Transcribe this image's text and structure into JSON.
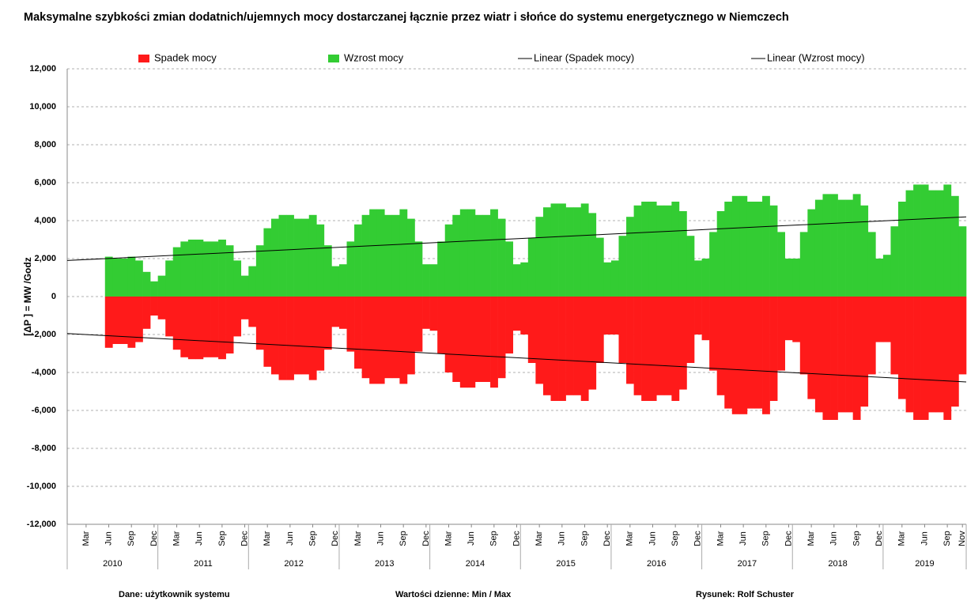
{
  "chart_data": {
    "type": "bar",
    "title": "Maksymalne szybkości zmian dodatnich/ujemnych mocy dostarczanej łącznie przez wiatr i słońce do systemu energetycznego w Niemczech",
    "y_label": "[ΔP ]  = MW /Godz",
    "footer": [
      "Dane:  użytkownik systemu",
      "Wartości dzienne:  Min  / Max",
      "Rysunek: Rolf Schuster"
    ],
    "x": [
      "2010-06",
      "2010-07",
      "2010-08",
      "2010-09",
      "2010-10",
      "2010-11",
      "2010-12",
      "2011-01",
      "2011-02",
      "2011-03",
      "2011-04",
      "2011-05",
      "2011-06",
      "2011-07",
      "2011-08",
      "2011-09",
      "2011-10",
      "2011-11",
      "2011-12",
      "2012-01",
      "2012-02",
      "2012-03",
      "2012-04",
      "2012-05",
      "2012-06",
      "2012-07",
      "2012-08",
      "2012-09",
      "2012-10",
      "2012-11",
      "2012-12",
      "2013-01",
      "2013-02",
      "2013-03",
      "2013-04",
      "2013-05",
      "2013-06",
      "2013-07",
      "2013-08",
      "2013-09",
      "2013-10",
      "2013-11",
      "2013-12",
      "2014-01",
      "2014-02",
      "2014-03",
      "2014-04",
      "2014-05",
      "2014-06",
      "2014-07",
      "2014-08",
      "2014-09",
      "2014-10",
      "2014-11",
      "2014-12",
      "2015-01",
      "2015-02",
      "2015-03",
      "2015-04",
      "2015-05",
      "2015-06",
      "2015-07",
      "2015-08",
      "2015-09",
      "2015-10",
      "2015-11",
      "2015-12",
      "2016-01",
      "2016-02",
      "2016-03",
      "2016-04",
      "2016-05",
      "2016-06",
      "2016-07",
      "2016-08",
      "2016-09",
      "2016-10",
      "2016-11",
      "2016-12",
      "2017-01",
      "2017-02",
      "2017-03",
      "2017-04",
      "2017-05",
      "2017-06",
      "2017-07",
      "2017-08",
      "2017-09",
      "2017-10",
      "2017-11",
      "2017-12",
      "2018-01",
      "2018-02",
      "2018-03",
      "2018-04",
      "2018-05",
      "2018-06",
      "2018-07",
      "2018-08",
      "2018-09",
      "2018-10",
      "2018-11",
      "2018-12",
      "2019-01",
      "2019-02",
      "2019-03",
      "2019-04",
      "2019-05",
      "2019-06",
      "2019-07",
      "2019-08",
      "2019-09",
      "2019-10",
      "2019-11"
    ],
    "series": [
      {
        "name": "Spadek mocy",
        "color": "#ff1a1a",
        "values": [
          -2700,
          -2500,
          -2500,
          -2700,
          -2400,
          -1700,
          -1000,
          -1200,
          -2100,
          -2800,
          -3200,
          -3300,
          -3300,
          -3200,
          -3200,
          -3300,
          -3000,
          -2100,
          -1200,
          -1600,
          -2800,
          -3700,
          -4100,
          -4400,
          -4400,
          -4100,
          -4100,
          -4400,
          -3900,
          -2800,
          -1600,
          -1700,
          -2900,
          -3800,
          -4300,
          -4600,
          -4600,
          -4300,
          -4300,
          -4600,
          -4100,
          -2900,
          -1700,
          -1800,
          -3000,
          -4000,
          -4500,
          -4800,
          -4800,
          -4500,
          -4500,
          -4800,
          -4300,
          -3000,
          -1800,
          -2000,
          -3500,
          -4600,
          -5200,
          -5500,
          -5500,
          -5200,
          -5200,
          -5500,
          -4900,
          -3500,
          -2000,
          -2000,
          -3500,
          -4600,
          -5200,
          -5500,
          -5500,
          -5200,
          -5200,
          -5500,
          -4900,
          -3500,
          -2000,
          -2300,
          -3900,
          -5200,
          -5900,
          -6200,
          -6200,
          -5900,
          -5900,
          -6200,
          -5500,
          -3900,
          -2300,
          -2400,
          -4100,
          -5400,
          -6100,
          -6500,
          -6500,
          -6100,
          -6100,
          -6500,
          -5800,
          -4100,
          -2400,
          -2400,
          -4100,
          -5400,
          -6100,
          -6500,
          -6500,
          -6100,
          -6100,
          -6500,
          -5800,
          -4100
        ]
      },
      {
        "name": "Wzrost mocy",
        "color": "#33cc33",
        "values": [
          2100,
          2000,
          2000,
          2100,
          1900,
          1300,
          800,
          1100,
          1900,
          2600,
          2900,
          3000,
          3000,
          2900,
          2900,
          3000,
          2700,
          1900,
          1100,
          1600,
          2700,
          3600,
          4100,
          4300,
          4300,
          4100,
          4100,
          4300,
          3800,
          2700,
          1600,
          1700,
          2900,
          3800,
          4300,
          4600,
          4600,
          4300,
          4300,
          4600,
          4100,
          2900,
          1700,
          1700,
          2900,
          3800,
          4300,
          4600,
          4600,
          4300,
          4300,
          4600,
          4100,
          2900,
          1700,
          1800,
          3100,
          4200,
          4700,
          4900,
          4900,
          4700,
          4700,
          4900,
          4400,
          3100,
          1800,
          1900,
          3200,
          4200,
          4800,
          5000,
          5000,
          4800,
          4800,
          5000,
          4500,
          3200,
          1900,
          2000,
          3400,
          4500,
          5000,
          5300,
          5300,
          5000,
          5000,
          5300,
          4800,
          3400,
          2000,
          2000,
          3400,
          4600,
          5100,
          5400,
          5400,
          5100,
          5100,
          5400,
          4800,
          3400,
          2000,
          2200,
          3700,
          5000,
          5600,
          5900,
          5900,
          5600,
          5600,
          5900,
          5300,
          3700
        ]
      }
    ],
    "trendlines": [
      {
        "name": "Linear (Spadek mocy)",
        "color": "#000000",
        "x": [
          "2010-01",
          "2019-11"
        ],
        "values": [
          -1950,
          -4500
        ]
      },
      {
        "name": "Linear (Wzrost mocy)",
        "color": "#000000",
        "x": [
          "2010-01",
          "2019-11"
        ],
        "values": [
          1900,
          4200
        ]
      }
    ],
    "xlim": [
      "2010-01",
      "2019-11"
    ],
    "xticks": [
      {
        "value": "2010-03",
        "label": "Mar"
      },
      {
        "value": "2010-06",
        "label": "Jun"
      },
      {
        "value": "2010-09",
        "label": "Sep"
      },
      {
        "value": "2010-12",
        "label": "Dec"
      },
      {
        "value": "2011-03",
        "label": "Mar"
      },
      {
        "value": "2011-06",
        "label": "Jun"
      },
      {
        "value": "2011-09",
        "label": "Sep"
      },
      {
        "value": "2011-12",
        "label": "Dec"
      },
      {
        "value": "2012-03",
        "label": "Mar"
      },
      {
        "value": "2012-06",
        "label": "Jun"
      },
      {
        "value": "2012-09",
        "label": "Sep"
      },
      {
        "value": "2012-12",
        "label": "Dec"
      },
      {
        "value": "2013-03",
        "label": "Mar"
      },
      {
        "value": "2013-06",
        "label": "Jun"
      },
      {
        "value": "2013-09",
        "label": "Sep"
      },
      {
        "value": "2013-12",
        "label": "Dec"
      },
      {
        "value": "2014-03",
        "label": "Mar"
      },
      {
        "value": "2014-06",
        "label": "Jun"
      },
      {
        "value": "2014-09",
        "label": "Sep"
      },
      {
        "value": "2014-12",
        "label": "Dec"
      },
      {
        "value": "2015-03",
        "label": "Mar"
      },
      {
        "value": "2015-06",
        "label": "Jun"
      },
      {
        "value": "2015-09",
        "label": "Sep"
      },
      {
        "value": "2015-12",
        "label": "Dec"
      },
      {
        "value": "2016-03",
        "label": "Mar"
      },
      {
        "value": "2016-06",
        "label": "Jun"
      },
      {
        "value": "2016-09",
        "label": "Sep"
      },
      {
        "value": "2016-12",
        "label": "Dec"
      },
      {
        "value": "2017-03",
        "label": "Mar"
      },
      {
        "value": "2017-06",
        "label": "Jun"
      },
      {
        "value": "2017-09",
        "label": "Sep"
      },
      {
        "value": "2017-12",
        "label": "Dec"
      },
      {
        "value": "2018-03",
        "label": "Mar"
      },
      {
        "value": "2018-06",
        "label": "Jun"
      },
      {
        "value": "2018-09",
        "label": "Sep"
      },
      {
        "value": "2018-12",
        "label": "Dec"
      },
      {
        "value": "2019-03",
        "label": "Mar"
      },
      {
        "value": "2019-06",
        "label": "Jun"
      },
      {
        "value": "2019-09",
        "label": "Sep"
      },
      {
        "value": "2019-11",
        "label": "Nov"
      }
    ],
    "years": [
      "2010",
      "2011",
      "2012",
      "2013",
      "2014",
      "2015",
      "2016",
      "2017",
      "2018",
      "2019"
    ],
    "ylim": [
      -12000,
      12000
    ],
    "yticks": [
      {
        "value": -12000,
        "label": "-12,000"
      },
      {
        "value": -10000,
        "label": "-10,000"
      },
      {
        "value": -8000,
        "label": "-8,000"
      },
      {
        "value": -6000,
        "label": "-6,000"
      },
      {
        "value": -4000,
        "label": "-4,000"
      },
      {
        "value": -2000,
        "label": "-2,000"
      },
      0,
      {
        "value": 2000,
        "label": "2,000"
      },
      {
        "value": 4000,
        "label": "4,000"
      },
      {
        "value": 6000,
        "label": "6,000"
      },
      {
        "value": 8000,
        "label": "8,000"
      },
      {
        "value": 10000,
        "label": "10,000"
      },
      {
        "value": 12000,
        "label": "12,000"
      }
    ],
    "grid": true,
    "legend": "top"
  }
}
